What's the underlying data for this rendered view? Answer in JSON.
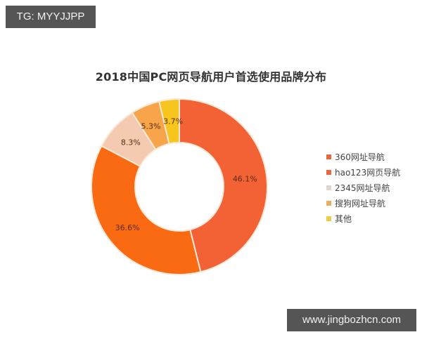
{
  "watermarks": {
    "top_left": "TG: MYYJJPP",
    "bottom_right": "www.jingbozhcn.com"
  },
  "chart_data": {
    "type": "pie",
    "variant": "donut",
    "title": "2018中国PC网页导航用户首选使用品牌分布",
    "categories": [
      "360网址导航",
      "hao123网页导航",
      "2345网址导航",
      "搜狗网址导航",
      "其他"
    ],
    "values": [
      46.1,
      36.6,
      8.3,
      5.3,
      3.7
    ],
    "labels": [
      "46.1%",
      "36.6%",
      "8.3%",
      "5.3%",
      "3.7%"
    ],
    "colors": [
      "#f26235",
      "#f96a12",
      "#f4cbb0",
      "#f7a44a",
      "#f7c51e"
    ],
    "unit": "%",
    "start_angle": "12 o'clock",
    "direction": "clockwise",
    "legend_position": "right",
    "grid": false
  }
}
